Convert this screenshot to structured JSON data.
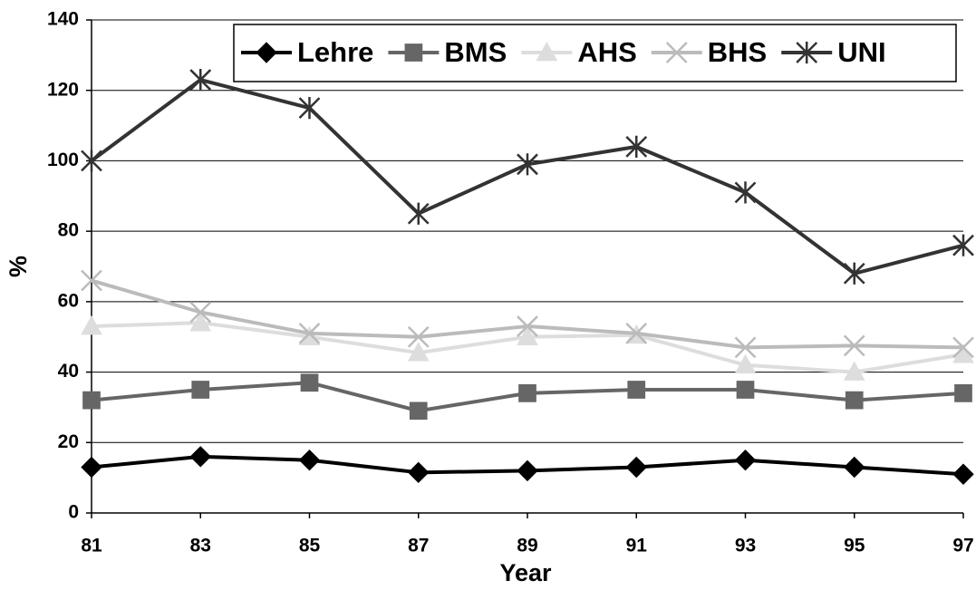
{
  "chart_data": {
    "type": "line",
    "xlabel": "Year",
    "ylabel": "%",
    "categories": [
      "81",
      "83",
      "85",
      "87",
      "89",
      "91",
      "93",
      "95",
      "97"
    ],
    "series": [
      {
        "name": "Lehre",
        "color": "#000000",
        "marker": "diamond",
        "values": [
          13,
          16,
          15,
          11.5,
          12,
          13,
          15,
          13,
          11
        ]
      },
      {
        "name": "BMS",
        "color": "#666666",
        "marker": "square",
        "values": [
          32,
          35,
          37,
          29,
          34,
          35,
          35,
          32,
          34
        ]
      },
      {
        "name": "AHS",
        "color": "#dddddd",
        "marker": "triangle",
        "values": [
          53,
          54,
          50,
          45.5,
          50,
          50.5,
          42,
          40,
          45
        ]
      },
      {
        "name": "BHS",
        "color": "#bbbbbb",
        "marker": "x",
        "values": [
          66,
          57,
          51,
          50,
          53,
          51,
          47,
          47.5,
          47
        ]
      },
      {
        "name": "UNI",
        "color": "#333333",
        "marker": "asterisk",
        "values": [
          100,
          123,
          115,
          85,
          99,
          104,
          91,
          68,
          76
        ]
      }
    ],
    "ylim": [
      0,
      140
    ],
    "yticks": [
      0,
      20,
      40,
      60,
      80,
      100,
      120,
      140
    ],
    "grid": true,
    "legend": "top-right"
  }
}
